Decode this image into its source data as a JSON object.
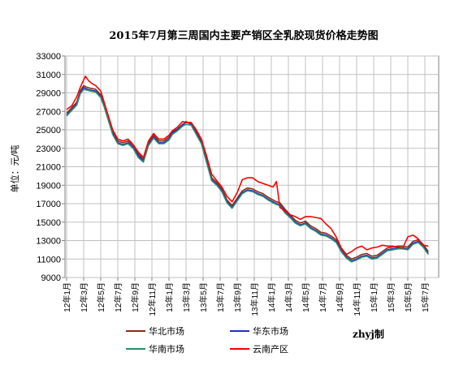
{
  "chart_data": {
    "type": "line",
    "title": "2015年7月第三周国内主要产销区全乳胶现货价格走势图",
    "ylabel": "单位：元/吨",
    "credit": "zhyj制",
    "ylim": [
      9000,
      33000
    ],
    "yticks": [
      9000,
      11000,
      13000,
      15000,
      17000,
      19000,
      21000,
      23000,
      25000,
      27000,
      29000,
      31000,
      33000
    ],
    "categories": [
      "12年1月",
      "12年3月",
      "12年5月",
      "12年7月",
      "12年9月",
      "12年11月",
      "13年1月",
      "13年3月",
      "13年5月",
      "13年7月",
      "13年9月",
      "13年11月",
      "14年1月",
      "14年3月",
      "14年5月",
      "14年7月",
      "14年9月",
      "14年11月",
      "15年1月",
      "15年3月",
      "15年5月",
      "15年7月"
    ],
    "colors": {
      "华北市场": "#8B2E16",
      "华东市场": "#1F2FBF",
      "华南市场": "#2E8B6E",
      "云南产区": "#FF0000"
    },
    "series": [
      {
        "name": "华北市场",
        "x": [
          0,
          0.3,
          0.6,
          0.8,
          1.0,
          1.2,
          1.4,
          1.7,
          2.0,
          2.2,
          2.5,
          2.7,
          3.0,
          3.3,
          3.6,
          3.9,
          4.2,
          4.5,
          4.8,
          5.1,
          5.4,
          5.7,
          6.0,
          6.2,
          6.5,
          6.8,
          7.0,
          7.3,
          7.6,
          7.9,
          8.2,
          8.5,
          8.8,
          9.1,
          9.4,
          9.7,
          10.0,
          10.3,
          10.6,
          10.9,
          11.2,
          11.5,
          11.8,
          12.1,
          12.3,
          12.5,
          12.8,
          13.1,
          13.4,
          13.7,
          14.0,
          14.3,
          14.6,
          14.9,
          15.2,
          15.5,
          15.8,
          16.1,
          16.4,
          16.7,
          17.0,
          17.3,
          17.6,
          17.9,
          18.2,
          18.5,
          18.8,
          19.1,
          19.4,
          19.7,
          20.0,
          20.3,
          20.6,
          20.9,
          21.2
        ],
        "y": [
          26800,
          27400,
          28000,
          29200,
          29800,
          29600,
          29500,
          29400,
          28800,
          27800,
          26000,
          24800,
          23800,
          23600,
          23800,
          23300,
          22400,
          21800,
          23600,
          24400,
          23800,
          23800,
          24200,
          24800,
          25100,
          25600,
          25800,
          25700,
          24800,
          23800,
          21800,
          19800,
          19300,
          18600,
          17400,
          16800,
          17600,
          18400,
          18700,
          18600,
          18300,
          18100,
          17700,
          17400,
          17200,
          17100,
          16400,
          15800,
          15200,
          14900,
          15100,
          14600,
          14300,
          13900,
          13800,
          13500,
          13100,
          12100,
          11400,
          11000,
          11200,
          11500,
          11600,
          11300,
          11400,
          11800,
          12200,
          12300,
          12400,
          12400,
          12300,
          12900,
          13100,
          12600,
          11800
        ]
      },
      {
        "name": "华东市场",
        "x": [
          0,
          0.3,
          0.6,
          0.8,
          1.0,
          1.2,
          1.4,
          1.7,
          2.0,
          2.2,
          2.5,
          2.7,
          3.0,
          3.3,
          3.6,
          3.9,
          4.2,
          4.5,
          4.8,
          5.1,
          5.4,
          5.7,
          6.0,
          6.2,
          6.5,
          6.8,
          7.0,
          7.3,
          7.6,
          7.9,
          8.2,
          8.5,
          8.8,
          9.1,
          9.4,
          9.7,
          10.0,
          10.3,
          10.6,
          10.9,
          11.2,
          11.5,
          11.8,
          12.1,
          12.3,
          12.5,
          12.8,
          13.1,
          13.4,
          13.7,
          14.0,
          14.3,
          14.6,
          14.9,
          15.2,
          15.5,
          15.8,
          16.1,
          16.4,
          16.7,
          17.0,
          17.3,
          17.6,
          17.9,
          18.2,
          18.5,
          18.8,
          19.1,
          19.4,
          19.7,
          20.0,
          20.3,
          20.6,
          20.9,
          21.2
        ],
        "y": [
          26600,
          27200,
          27800,
          29000,
          29600,
          29400,
          29300,
          29200,
          28600,
          27600,
          25800,
          24600,
          23600,
          23400,
          23600,
          23100,
          22200,
          21600,
          23400,
          24200,
          23600,
          23600,
          24000,
          24700,
          25000,
          25500,
          25900,
          25600,
          24600,
          23600,
          21600,
          19600,
          19100,
          18400,
          17200,
          16600,
          17400,
          18200,
          18500,
          18400,
          18100,
          17900,
          17500,
          17200,
          17000,
          16900,
          16200,
          15600,
          15000,
          14700,
          14900,
          14400,
          14100,
          13700,
          13600,
          13300,
          12900,
          11900,
          11200,
          10800,
          11000,
          11300,
          11400,
          11100,
          11200,
          11600,
          12000,
          12100,
          12200,
          12200,
          12100,
          12700,
          12900,
          12400,
          11600
        ]
      },
      {
        "name": "华南市场",
        "x": [
          0,
          0.3,
          0.6,
          0.8,
          1.0,
          1.2,
          1.4,
          1.7,
          2.0,
          2.2,
          2.5,
          2.7,
          3.0,
          3.3,
          3.6,
          3.9,
          4.2,
          4.5,
          4.8,
          5.1,
          5.4,
          5.7,
          6.0,
          6.2,
          6.5,
          6.8,
          7.0,
          7.3,
          7.6,
          7.9,
          8.2,
          8.5,
          8.8,
          9.1,
          9.4,
          9.7,
          10.0,
          10.3,
          10.6,
          10.9,
          11.2,
          11.5,
          11.8,
          12.1,
          12.3,
          12.5,
          12.8,
          13.1,
          13.4,
          13.7,
          14.0,
          14.3,
          14.6,
          14.9,
          15.2,
          15.5,
          15.8,
          16.1,
          16.4,
          16.7,
          17.0,
          17.3,
          17.6,
          17.9,
          18.2,
          18.5,
          18.8,
          19.1,
          19.4,
          19.7,
          20.0,
          20.3,
          20.6,
          20.9,
          21.2
        ],
        "y": [
          26500,
          27100,
          27700,
          28900,
          29400,
          29300,
          29200,
          29100,
          28500,
          27500,
          25700,
          24500,
          23500,
          23300,
          23500,
          23000,
          22000,
          21500,
          23300,
          24100,
          23500,
          23500,
          23900,
          24500,
          24900,
          25400,
          25600,
          25500,
          24500,
          23500,
          21500,
          19500,
          19000,
          18300,
          17100,
          16500,
          17300,
          18100,
          18400,
          18300,
          18000,
          17800,
          17400,
          17100,
          16900,
          16800,
          16000,
          15500,
          14900,
          14600,
          14800,
          14300,
          14000,
          13600,
          13500,
          13200,
          12800,
          11800,
          11100,
          10700,
          10900,
          11200,
          11300,
          11000,
          11100,
          11500,
          11900,
          12000,
          12100,
          12100,
          12000,
          12600,
          12800,
          12300,
          11500
        ]
      },
      {
        "name": "云南产区",
        "x": [
          0,
          0.3,
          0.6,
          0.8,
          1.0,
          1.1,
          1.3,
          1.5,
          1.7,
          2.0,
          2.2,
          2.5,
          2.7,
          3.0,
          3.3,
          3.6,
          3.9,
          4.2,
          4.5,
          4.8,
          5.1,
          5.4,
          5.7,
          6.0,
          6.2,
          6.5,
          6.8,
          7.0,
          7.3,
          7.6,
          7.9,
          8.2,
          8.5,
          8.8,
          9.1,
          9.4,
          9.7,
          10.0,
          10.3,
          10.6,
          10.9,
          11.2,
          11.5,
          11.8,
          12.1,
          12.3,
          12.5,
          12.8,
          13.1,
          13.4,
          13.7,
          14.0,
          14.3,
          14.6,
          14.9,
          15.2,
          15.5,
          15.8,
          16.1,
          16.4,
          16.7,
          17.0,
          17.3,
          17.6,
          17.9,
          18.2,
          18.5,
          18.8,
          19.1,
          19.4,
          19.7,
          20.0,
          20.3,
          20.6,
          20.9,
          21.2
        ],
        "y": [
          27200,
          27600,
          28600,
          29600,
          30400,
          30800,
          30300,
          30000,
          29800,
          29200,
          28000,
          26200,
          25000,
          24000,
          23800,
          24000,
          23400,
          22600,
          22000,
          23800,
          24600,
          24000,
          24000,
          24400,
          24900,
          25300,
          25900,
          25800,
          25800,
          25000,
          24000,
          22200,
          20200,
          19500,
          18800,
          17800,
          17200,
          18200,
          19600,
          19800,
          19800,
          19400,
          19200,
          19000,
          18800,
          19400,
          16600,
          16200,
          15800,
          15600,
          15300,
          15600,
          15600,
          15500,
          15400,
          14800,
          14300,
          13400,
          12200,
          11500,
          11800,
          12200,
          12400,
          12000,
          12200,
          12300,
          12500,
          12400,
          12400,
          12300,
          12200,
          13400,
          13600,
          13200,
          12500,
          12400
        ]
      }
    ]
  }
}
